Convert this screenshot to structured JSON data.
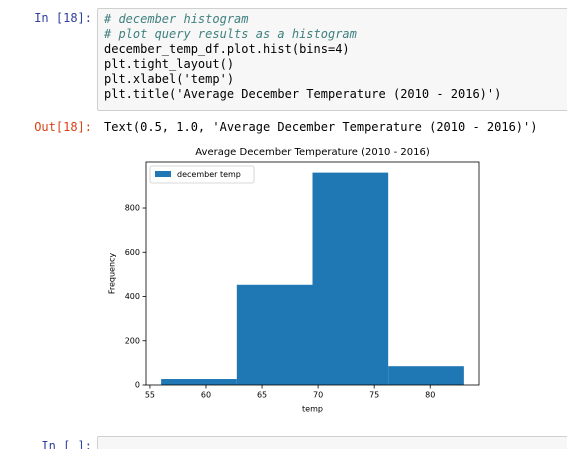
{
  "cells": [
    {
      "prompt": "In [18]:",
      "code": [
        "# december histogram",
        "# plot query results as a histogram",
        "december_temp_df.plot.hist(bins=4)",
        "plt.tight_layout()",
        "plt.xlabel('temp')",
        "plt.title('Average December Temperature (2010 - 2016)')"
      ],
      "out_prompt": "Out[18]:",
      "output": "Text(0.5, 1.0, 'Average December Temperature (2010 - 2016)')"
    },
    {
      "prompt": "In [ ]:"
    }
  ],
  "chart_data": {
    "type": "histogram",
    "title": "Average December Temperature (2010 - 2016)",
    "xlabel": "temp",
    "ylabel": "Frequency",
    "bins": [
      56,
      62.75,
      69.5,
      76.25,
      83
    ],
    "series": [
      {
        "name": "december temp",
        "color": "#1f77b4",
        "values": [
          27,
          453,
          960,
          85
        ]
      }
    ],
    "xlim": [
      54.65,
      84.35
    ],
    "xticks": [
      55,
      60,
      65,
      70,
      75,
      80
    ],
    "ylim": [
      0,
      1008
    ],
    "yticks": [
      0,
      200,
      400,
      600,
      800
    ],
    "legend": "upper left"
  }
}
